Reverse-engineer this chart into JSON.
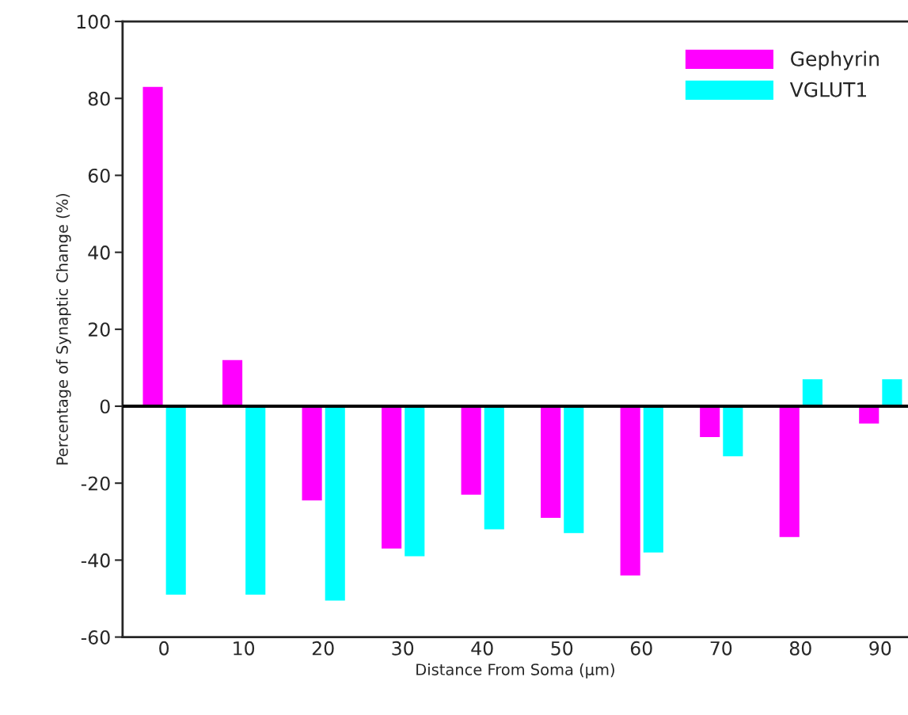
{
  "chart_data": {
    "type": "bar",
    "xlabel": "Distance From Soma (µm)",
    "ylabel": "Percentage of Synaptic Change (%)",
    "categories": [
      "0",
      "10",
      "20",
      "30",
      "40",
      "50",
      "60",
      "70",
      "80",
      "90"
    ],
    "series": [
      {
        "name": "Gephyrin",
        "color": "#ff00ff",
        "values": [
          83,
          12,
          -24.5,
          -37,
          -23,
          -29,
          -44,
          -8,
          -34,
          -4.5
        ]
      },
      {
        "name": "VGLUT1",
        "color": "#00ffff",
        "values": [
          -49,
          -49,
          -50.5,
          -39,
          -32,
          -33,
          -38,
          -13,
          7,
          7
        ]
      }
    ],
    "ylim": [
      -60,
      100
    ],
    "yticks": [
      -60,
      -40,
      -20,
      0,
      20,
      40,
      60,
      80,
      100
    ],
    "ref_lines": [
      {
        "axis": "y",
        "value": 0,
        "color": "#000000"
      }
    ],
    "grid": false,
    "legend": "top right"
  }
}
